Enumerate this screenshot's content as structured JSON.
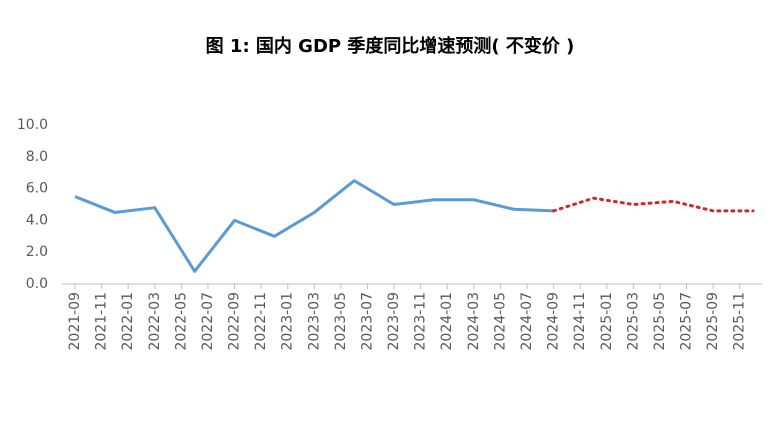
{
  "chart_data": {
    "type": "line",
    "title": "图 1: 国内 GDP 季度同比增速预测( 不变价 )",
    "xlim": [
      "2021-09",
      "2025-12"
    ],
    "xticks": [
      "2021-09",
      "2021-11",
      "2022-01",
      "2022-03",
      "2022-05",
      "2022-07",
      "2022-09",
      "2022-11",
      "2023-01",
      "2023-03",
      "2023-05",
      "2023-07",
      "2023-09",
      "2023-11",
      "2024-01",
      "2024-03",
      "2024-05",
      "2024-07",
      "2024-09",
      "2024-11",
      "2025-01",
      "2025-03",
      "2025-05",
      "2025-07",
      "2025-09",
      "2025-11"
    ],
    "ylim": [
      0,
      10
    ],
    "yticks": [
      {
        "value": 0,
        "label": "0.0"
      },
      {
        "value": 2,
        "label": "2.0"
      },
      {
        "value": 4,
        "label": "4.0"
      },
      {
        "value": 6,
        "label": "6.0"
      },
      {
        "value": 8,
        "label": "8.0"
      },
      {
        "value": 10,
        "label": "10.0"
      }
    ],
    "series": [
      {
        "color": "#5b9bd5",
        "dash": false,
        "x": [
          "2021-09",
          "2021-12",
          "2022-03",
          "2022-06",
          "2022-09",
          "2022-12",
          "2023-03",
          "2023-06",
          "2023-09",
          "2023-12",
          "2024-03",
          "2024-06",
          "2024-09"
        ],
        "values": [
          5.5,
          4.5,
          4.8,
          0.8,
          4.0,
          3.0,
          4.5,
          6.5,
          5.0,
          5.3,
          5.3,
          4.7,
          4.6
        ]
      },
      {
        "color": "#d62728",
        "dash": true,
        "x": [
          "2024-09",
          "2024-12",
          "2025-03",
          "2025-06",
          "2025-09",
          "2025-12"
        ],
        "values": [
          4.6,
          5.4,
          5.0,
          5.2,
          4.6,
          4.6
        ]
      }
    ]
  }
}
